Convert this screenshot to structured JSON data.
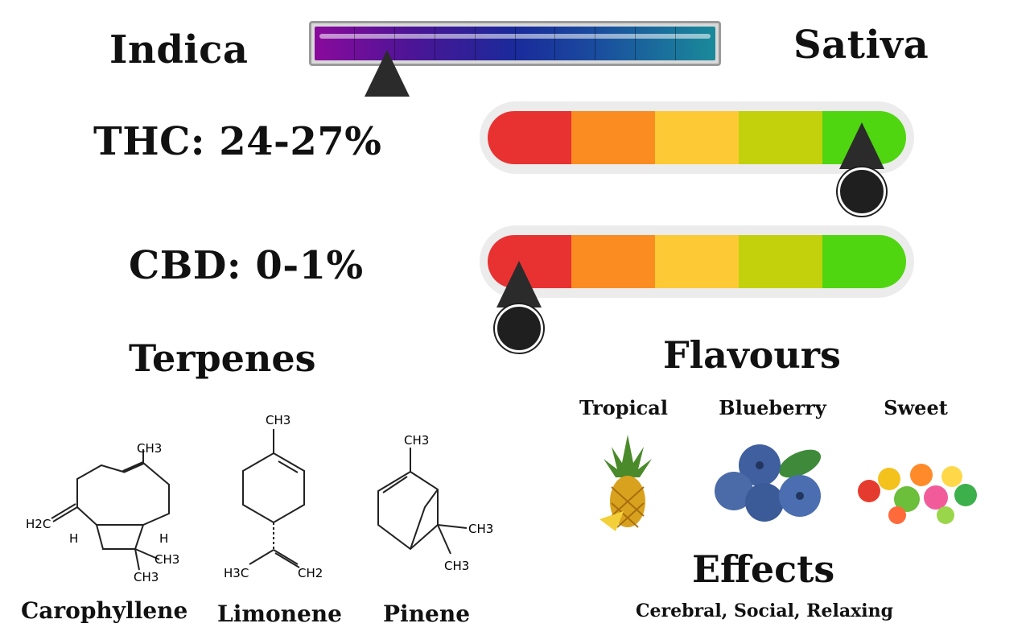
{
  "spectrum": {
    "left_label": "Indica",
    "right_label": "Sativa",
    "position": 0.19
  },
  "thc": {
    "label": "THC: 24-27%",
    "level": 0.88
  },
  "cbd": {
    "label": "CBD: 0-1%",
    "level": 0.09
  },
  "terpenes": {
    "heading": "Terpenes",
    "items": [
      {
        "name": "Carophyllene",
        "atoms": [
          "CH3",
          "H2C",
          "H",
          "H",
          "CH3",
          "CH3"
        ]
      },
      {
        "name": "Limonene",
        "atoms": [
          "CH3",
          "H3C",
          "CH2"
        ]
      },
      {
        "name": "Pinene",
        "atoms": [
          "CH3",
          "CH3",
          "CH3"
        ]
      }
    ]
  },
  "flavours": {
    "heading": "Flavours",
    "items": [
      {
        "name": "Tropical",
        "icon": "pineapple-icon"
      },
      {
        "name": "Blueberry",
        "icon": "blueberry-icon"
      },
      {
        "name": "Sweet",
        "icon": "candy-icon"
      }
    ]
  },
  "effects": {
    "heading": "Effects",
    "text": "Cerebral, Social, Relaxing"
  },
  "colors": {
    "red": "#e83232",
    "orange": "#fb8c22",
    "yellow": "#fdca36",
    "lime": "#c2d10c",
    "green": "#4fd610"
  }
}
